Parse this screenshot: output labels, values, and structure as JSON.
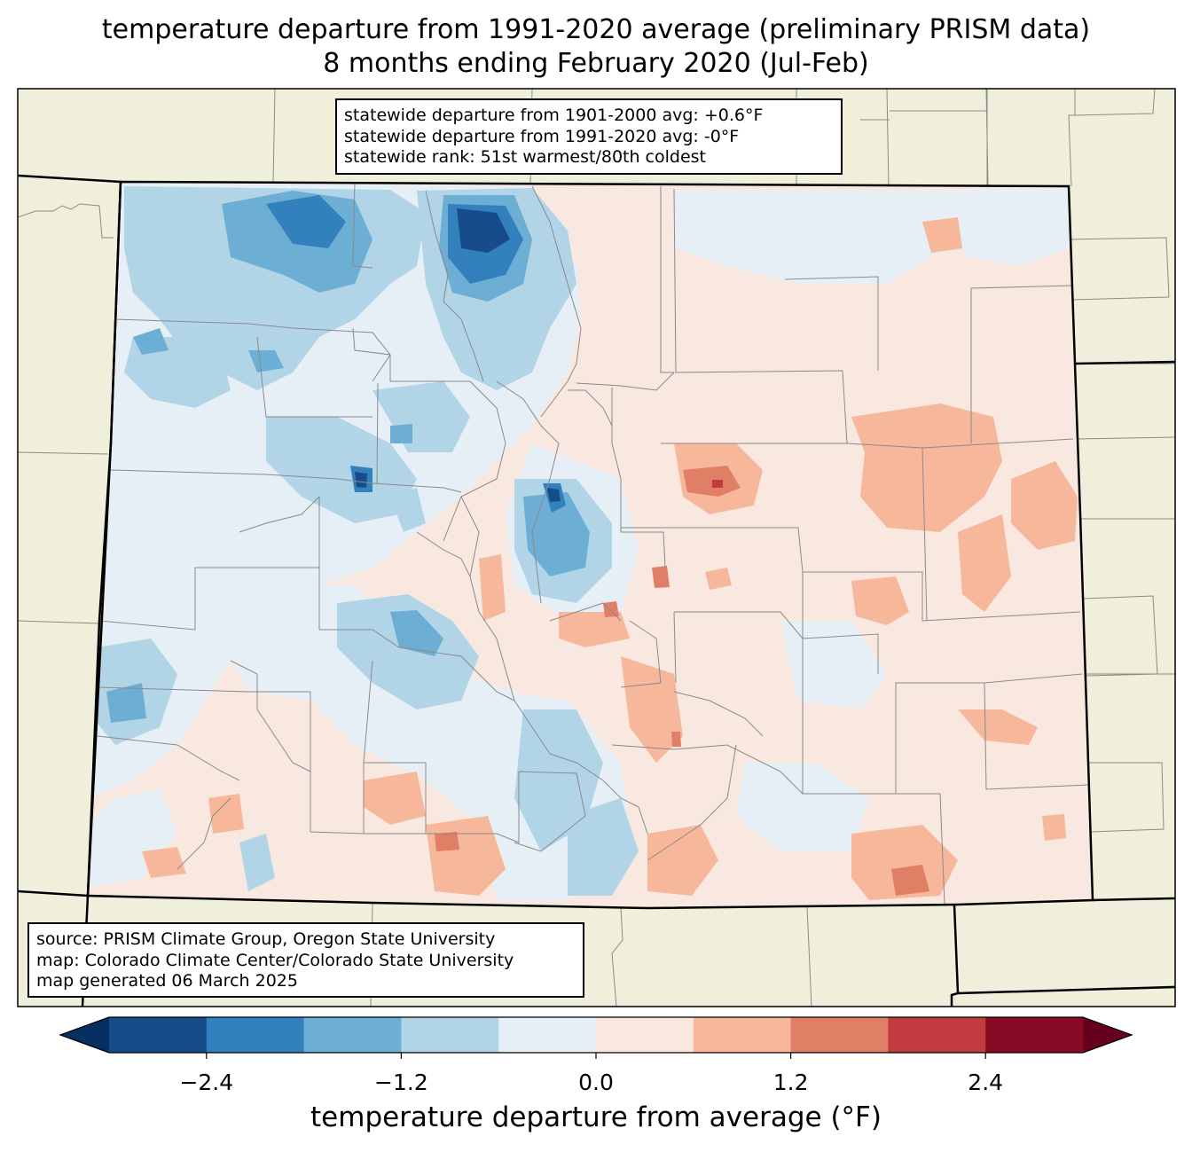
{
  "title": {
    "line1": "temperature departure from 1991-2020 average (preliminary PRISM data)",
    "line2": "8 months ending February 2020 (Jul-Feb)"
  },
  "stats": {
    "line1": "statewide departure from 1901-2000 avg: +0.6°F",
    "line2": "statewide departure from 1991-2020 avg: -0°F",
    "line3": "statewide rank: 51st warmest/80th coldest"
  },
  "source": {
    "line1": "source: PRISM Climate Group, Oregon State University",
    "line2": "map: Colorado Climate Center/Colorado State University",
    "line3": "map generated 06 March 2025"
  },
  "colorbar": {
    "title": "temperature departure from average (°F)",
    "ticks": [
      {
        "value": -2.4,
        "label": "−2.4"
      },
      {
        "value": -1.2,
        "label": "−1.2"
      },
      {
        "value": 0.0,
        "label": "0.0"
      },
      {
        "value": 1.2,
        "label": "1.2"
      },
      {
        "value": 2.4,
        "label": "2.4"
      }
    ],
    "range": [
      -3.0,
      3.0
    ],
    "step": 0.6,
    "under_color": "#053061",
    "over_color": "#67001f",
    "colors": [
      "#154c89",
      "#3280bc",
      "#6caed4",
      "#b2d4e7",
      "#e5eff5",
      "#f9e8e0",
      "#f6b79b",
      "#e07e66",
      "#c23b3e",
      "#870a24"
    ]
  },
  "map": {
    "land_color": "#efefdc",
    "state_fill": "#f9e8e0"
  }
}
